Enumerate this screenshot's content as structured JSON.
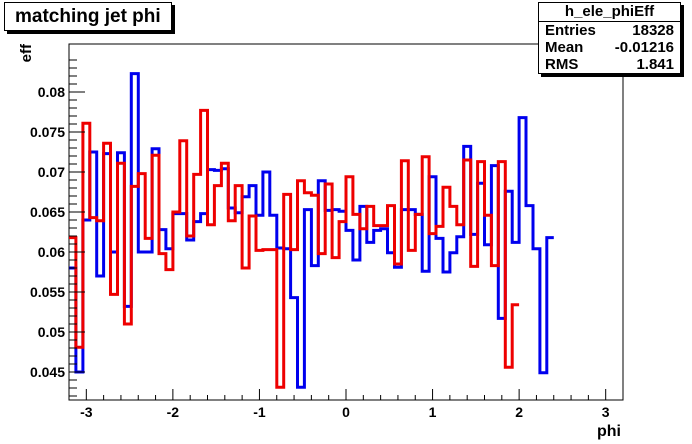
{
  "title": "matching jet phi",
  "stats": {
    "name": "h_ele_phiEff",
    "rows": [
      {
        "label": "Entries",
        "value": "18328"
      },
      {
        "label": "Mean",
        "value": "-0.01216"
      },
      {
        "label": "RMS",
        "value": "1.841"
      }
    ]
  },
  "chart_data": {
    "type": "line",
    "xlabel": "phi",
    "ylabel": "eff",
    "xlim": [
      -3.2,
      3.2
    ],
    "ylim": [
      0.0415,
      0.086
    ],
    "grid": false,
    "xticks": [
      -3,
      -2,
      -1,
      0,
      1,
      2,
      3
    ],
    "yticks": [
      0.045,
      0.05,
      0.055,
      0.06,
      0.065,
      0.07,
      0.075,
      0.08
    ],
    "ytick_labels": [
      "0.045",
      "0.05",
      "0.055",
      "0.06",
      "0.065",
      "0.07",
      "0.075",
      "0.08"
    ],
    "bin_edges": [
      -3.2,
      -3.12,
      -3.04,
      -2.96,
      -2.88,
      -2.8,
      -2.72,
      -2.64,
      -2.56,
      -2.48,
      -2.4,
      -2.32,
      -2.24,
      -2.16,
      -2.08,
      -2.0,
      -1.92,
      -1.84,
      -1.76,
      -1.68,
      -1.6,
      -1.52,
      -1.44,
      -1.36,
      -1.28,
      -1.2,
      -1.12,
      -1.04,
      -0.96,
      -0.88,
      -0.8,
      -0.72,
      -0.64,
      -0.56,
      -0.48,
      -0.4,
      -0.32,
      -0.24,
      -0.16,
      -0.08,
      0.0,
      0.08,
      0.16,
      0.24,
      0.32,
      0.4,
      0.48,
      0.56,
      0.64,
      0.72,
      0.8,
      0.88,
      0.96,
      1.04,
      1.12,
      1.2,
      1.28,
      1.36,
      1.44,
      1.52,
      1.6,
      1.68,
      1.76,
      1.84,
      1.92,
      2.0,
      2.08,
      2.16,
      2.24,
      2.32,
      2.4,
      2.48,
      2.56,
      2.64,
      2.72,
      2.8,
      2.88,
      2.96,
      3.04,
      3.12,
      3.2
    ],
    "series": [
      {
        "color": "#0000ee",
        "values": [
          0.058,
          0.045,
          0.064,
          0.0725,
          0.057,
          0.0723,
          0.06,
          0.0724,
          0.0532,
          0.0823,
          0.06,
          0.06,
          0.0729,
          0.0628,
          0.0604,
          0.0648,
          0.0648,
          0.0615,
          0.0638,
          0.0648,
          0.0703,
          0.0702,
          0.0704,
          0.0655,
          0.0649,
          0.0669,
          0.0683,
          0.0646,
          0.07,
          0.0646,
          0.0605,
          0.0604,
          0.0543,
          0.0431,
          0.0653,
          0.0583,
          0.0689,
          0.0652,
          0.0653,
          0.0651,
          0.0627,
          0.059,
          0.0657,
          0.0612,
          0.0627,
          0.0629,
          0.0599,
          0.0581,
          0.0653,
          0.0653,
          0.0647,
          0.0576,
          0.0694,
          0.0617,
          0.0575,
          0.0599,
          0.0619,
          0.0732,
          0.0622,
          0.0686,
          0.0609,
          0.0708,
          0.0517,
          0.0676,
          0.0612,
          0.0768,
          0.0658,
          0.0604,
          0.0449,
          0.0618
        ]
      },
      {
        "color": "#ee0000",
        "values": [
          0.0618,
          0.0481,
          0.0761,
          0.0643,
          0.0639,
          0.0736,
          0.0547,
          0.0711,
          0.051,
          0.0682,
          0.0698,
          0.0617,
          0.0721,
          0.0598,
          0.0578,
          0.065,
          0.0739,
          0.062,
          0.0697,
          0.0777,
          0.0634,
          0.0683,
          0.0711,
          0.0639,
          0.0683,
          0.058,
          0.0645,
          0.0602,
          0.0603,
          0.0603,
          0.0431,
          0.0672,
          0.0603,
          0.0689,
          0.0674,
          0.0671,
          0.0598,
          0.0685,
          0.0593,
          0.0638,
          0.0694,
          0.0647,
          0.0629,
          0.0657,
          0.0633,
          0.0633,
          0.0658,
          0.0585,
          0.0714,
          0.0602,
          0.0647,
          0.0719,
          0.0623,
          0.0632,
          0.0681,
          0.0657,
          0.0634,
          0.0715,
          0.0582,
          0.0713,
          0.0646,
          0.0583,
          0.0713,
          0.0456,
          0.0534
        ]
      }
    ]
  }
}
